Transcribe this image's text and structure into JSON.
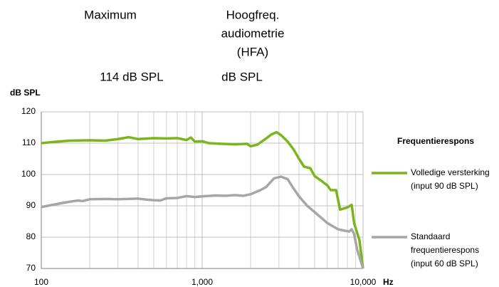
{
  "header": {
    "col1": "Maximum",
    "col2_line1": "Hoogfreq.",
    "col2_line2": "audiometrie",
    "col2_line3": "(HFA)",
    "val1": "114 dB SPL",
    "val2": "dB SPL"
  },
  "chart_data": {
    "type": "line",
    "x_label": "Hz",
    "y_label": "dB SPL",
    "legend_title": "Frequentierespons",
    "legend_position": "right",
    "log_x": true,
    "grid": true,
    "xlim": [
      100,
      10000
    ],
    "xticks": [
      100,
      {
        "value": 1000,
        "label": "1,000"
      },
      {
        "value": 10000,
        "label": "10,000"
      }
    ],
    "xminor": [
      200,
      300,
      400,
      500,
      600,
      700,
      800,
      900,
      2000,
      3000,
      4000,
      5000,
      6000,
      7000,
      8000,
      9000
    ],
    "ylim": [
      70,
      120
    ],
    "yticks": [
      70,
      80,
      90,
      100,
      110,
      120
    ],
    "series": [
      {
        "name": "Volledige versterking (input 90 dB SPL)",
        "color": "#7ab51d",
        "x": [
          100,
          120,
          150,
          200,
          250,
          300,
          350,
          400,
          500,
          600,
          700,
          800,
          850,
          900,
          1000,
          1100,
          1300,
          1600,
          1900,
          2000,
          2200,
          2500,
          2700,
          2900,
          3100,
          3400,
          3700,
          4000,
          4300,
          4700,
          5000,
          5500,
          6000,
          6300,
          6800,
          7200,
          8000,
          8500,
          8800,
          9500,
          10000
        ],
        "values": [
          110,
          110.4,
          110.8,
          110.9,
          110.8,
          111.3,
          111.9,
          111.3,
          111.6,
          111.5,
          111.6,
          111,
          111.8,
          110.5,
          110.6,
          110,
          109.8,
          109.6,
          109.8,
          109,
          109.5,
          111.5,
          112.8,
          113.5,
          112.5,
          110.5,
          108,
          105,
          102.5,
          102,
          99.5,
          98,
          96.5,
          95,
          95,
          88.8,
          89.5,
          90.3,
          84.5,
          79,
          70
        ]
      },
      {
        "name": "Standaard frequentierespons (input 60 dB SPL)",
        "color": "#a6a6a6",
        "x": [
          100,
          120,
          150,
          170,
          180,
          200,
          250,
          300,
          400,
          450,
          500,
          550,
          600,
          700,
          800,
          900,
          1000,
          1200,
          1400,
          1600,
          1800,
          2000,
          2300,
          2500,
          2800,
          3100,
          3400,
          3700,
          4000,
          4500,
          5000,
          6000,
          7000,
          7800,
          8200,
          8500,
          8800,
          9200,
          10000
        ],
        "values": [
          89.6,
          90.4,
          91.3,
          91.7,
          91.5,
          92.1,
          92.2,
          92.1,
          92.3,
          92,
          91.8,
          91.7,
          92.4,
          92.5,
          93.1,
          92.8,
          93,
          93.3,
          93.2,
          93.4,
          93.2,
          93.7,
          95,
          96,
          98.8,
          99.3,
          98.5,
          95.5,
          93,
          90,
          88,
          84.5,
          82.5,
          82,
          81.8,
          82.5,
          81,
          76,
          70
        ]
      }
    ]
  }
}
